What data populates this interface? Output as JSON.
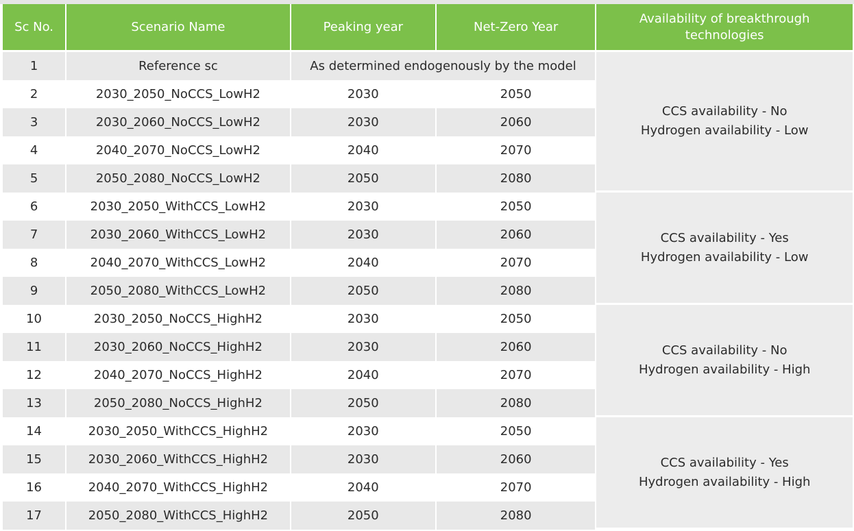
{
  "headers": [
    "Sc No.",
    "Scenario Name",
    "Peaking year",
    "Net-Zero Year",
    "Availability of breakthrough technologies"
  ],
  "reference_row": {
    "no": "1",
    "name": "Reference sc",
    "note": "As determined endogenously by the model"
  },
  "rows": [
    {
      "no": "2",
      "name": "2030_2050_NoCCS_LowH2",
      "peak": "2030",
      "netzero": "2050"
    },
    {
      "no": "3",
      "name": "2030_2060_NoCCS_LowH2",
      "peak": "2030",
      "netzero": "2060"
    },
    {
      "no": "4",
      "name": "2040_2070_NoCCS_LowH2",
      "peak": "2040",
      "netzero": "2070"
    },
    {
      "no": "5",
      "name": "2050_2080_NoCCS_LowH2",
      "peak": "2050",
      "netzero": "2080"
    },
    {
      "no": "6",
      "name": "2030_2050_WithCCS_LowH2",
      "peak": "2030",
      "netzero": "2050"
    },
    {
      "no": "7",
      "name": "2030_2060_WithCCS_LowH2",
      "peak": "2030",
      "netzero": "2060"
    },
    {
      "no": "8",
      "name": "2040_2070_WithCCS_LowH2",
      "peak": "2040",
      "netzero": "2070"
    },
    {
      "no": "9",
      "name": "2050_2080_WithCCS_LowH2",
      "peak": "2050",
      "netzero": "2080"
    },
    {
      "no": "10",
      "name": "2030_2050_NoCCS_HighH2",
      "peak": "2030",
      "netzero": "2050"
    },
    {
      "no": "11",
      "name": "2030_2060_NoCCS_HighH2",
      "peak": "2030",
      "netzero": "2060"
    },
    {
      "no": "12",
      "name": "2040_2070_NoCCS_HighH2",
      "peak": "2040",
      "netzero": "2070"
    },
    {
      "no": "13",
      "name": "2050_2080_NoCCS_HighH2",
      "peak": "2050",
      "netzero": "2080"
    },
    {
      "no": "14",
      "name": "2030_2050_WithCCS_HighH2",
      "peak": "2030",
      "netzero": "2050"
    },
    {
      "no": "15",
      "name": "2030_2060_WithCCS_HighH2",
      "peak": "2030",
      "netzero": "2060"
    },
    {
      "no": "16",
      "name": "2040_2070_WithCCS_HighH2",
      "peak": "2040",
      "netzero": "2070"
    },
    {
      "no": "17",
      "name": "2050_2080_WithCCS_HighH2",
      "peak": "2050",
      "netzero": "2080"
    }
  ],
  "availability_groups": [
    {
      "ccs": "CCS availability - No",
      "hydrogen": "Hydrogen availability - Low"
    },
    {
      "ccs": "CCS availability - Yes",
      "hydrogen": "Hydrogen availability - Low"
    },
    {
      "ccs": "CCS availability - No",
      "hydrogen": "Hydrogen availability - High"
    },
    {
      "ccs": "CCS availability - Yes",
      "hydrogen": "Hydrogen availability - High"
    }
  ],
  "colors": {
    "header_bg": "#7cc04a",
    "stripe_bg": "#e8e8e8",
    "group_bg": "#ececec"
  }
}
